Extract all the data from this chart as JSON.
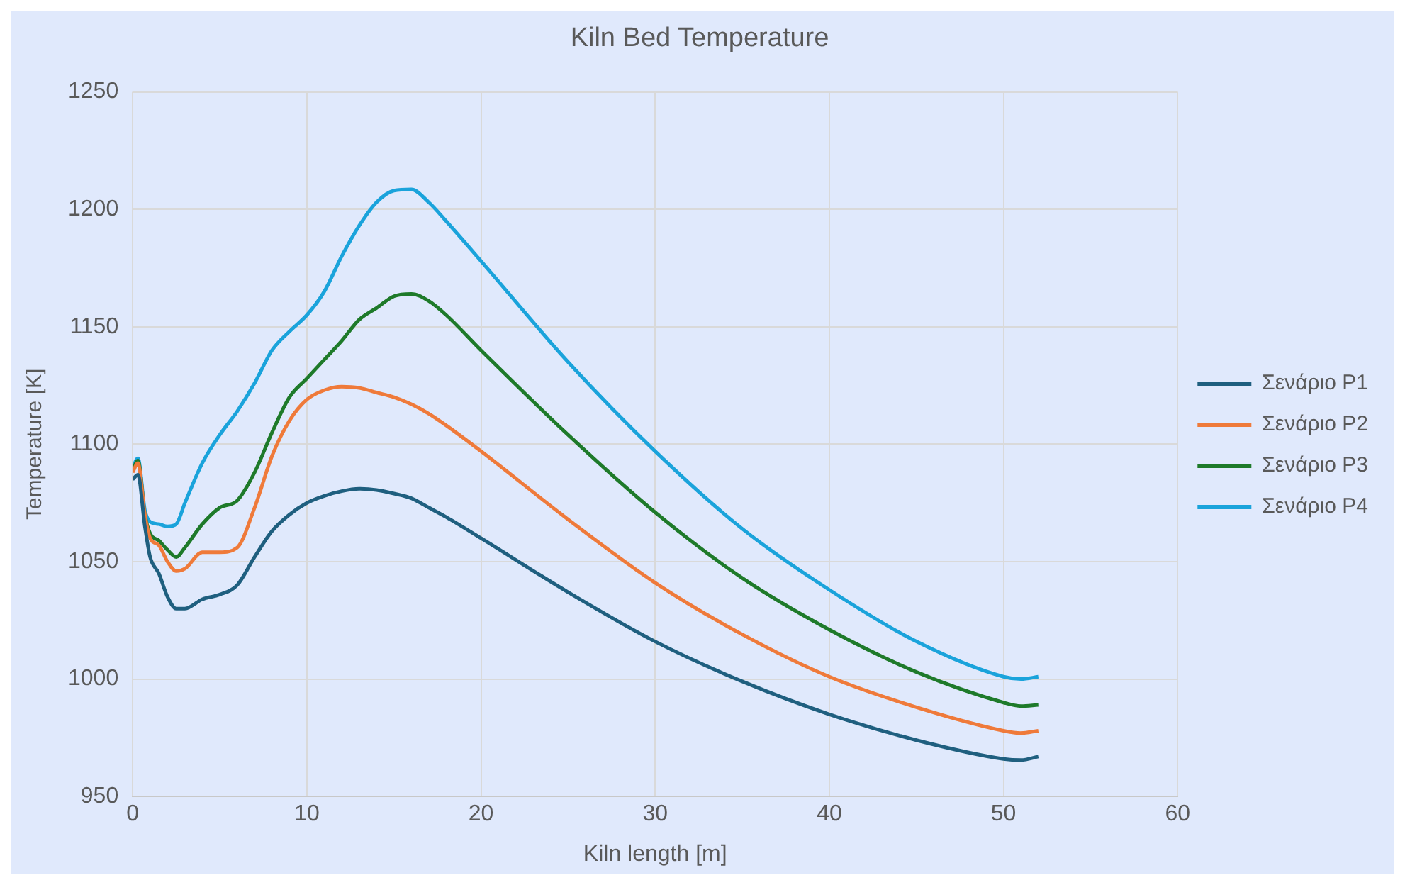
{
  "chart_data": {
    "type": "line",
    "title": "Kiln Bed Temperature",
    "xlabel": "Kiln length [m]",
    "ylabel": "Temperature [K]",
    "xlim": [
      0,
      60
    ],
    "xticks": [
      0,
      10,
      20,
      30,
      40,
      50,
      60
    ],
    "ylim": [
      950,
      1250
    ],
    "yticks": [
      950,
      1000,
      1050,
      1100,
      1150,
      1200,
      1250
    ],
    "grid": true,
    "legend": "right",
    "marker": "none",
    "line_style": "solid",
    "x": [
      0,
      0.3,
      0.7,
      1,
      1.5,
      2,
      2.5,
      3,
      4,
      5,
      6,
      7,
      8,
      9,
      10,
      11,
      12,
      13,
      14,
      15,
      16,
      17,
      18,
      20,
      25,
      30,
      35,
      40,
      45,
      50,
      51,
      52
    ],
    "series": [
      {
        "name": "Σενάριο P1",
        "color": "#1f5f7f",
        "values": [
          1085,
          1087,
          1065,
          1052,
          1045,
          1035,
          1030,
          1030,
          1034,
          1036,
          1040,
          1052,
          1063,
          1070,
          1075,
          1078,
          1080,
          1081,
          1080.5,
          1079,
          1077,
          1073,
          1069,
          1060,
          1037,
          1016,
          999,
          985,
          974,
          966,
          965.5,
          967
        ]
      },
      {
        "name": "Σενάριο P2",
        "color": "#ef7a3a",
        "values": [
          1088,
          1092,
          1070,
          1060,
          1057,
          1050,
          1046,
          1047,
          1054,
          1054,
          1056,
          1073,
          1095,
          1110,
          1119,
          1123,
          1124.5,
          1124,
          1122,
          1120,
          1117,
          1113,
          1108,
          1097,
          1068,
          1041,
          1019,
          1001,
          988,
          978,
          977,
          978
        ]
      },
      {
        "name": "Σενάριο P3",
        "color": "#1e7a2a",
        "values": [
          1089,
          1093,
          1070,
          1062,
          1059,
          1055,
          1052,
          1056,
          1066,
          1073,
          1076,
          1088,
          1105,
          1120,
          1128,
          1136,
          1144,
          1153,
          1158,
          1163,
          1164,
          1161,
          1155,
          1140,
          1104,
          1071,
          1043,
          1021,
          1003,
          990,
          988.5,
          989
        ]
      },
      {
        "name": "Σενάριο P4",
        "color": "#1aa3db",
        "values": [
          1090,
          1094,
          1072,
          1067,
          1066,
          1065,
          1066,
          1075,
          1092,
          1104,
          1114,
          1126,
          1140,
          1148,
          1155,
          1165,
          1180,
          1193,
          1203,
          1208,
          1208.5,
          1203,
          1195,
          1178,
          1135,
          1097,
          1064,
          1038,
          1016,
          1001,
          1000,
          1001
        ]
      }
    ]
  }
}
